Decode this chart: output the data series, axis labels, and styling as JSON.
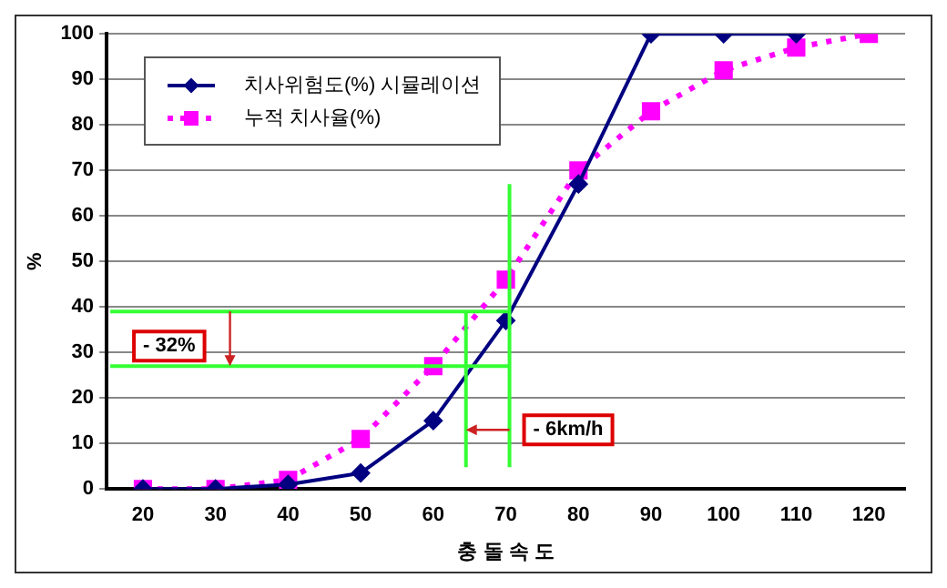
{
  "chart_data": {
    "type": "line",
    "xlabel": "충 돌 속 도",
    "ylabel": "%",
    "x": [
      20,
      30,
      40,
      50,
      60,
      70,
      80,
      90,
      100,
      110,
      120
    ],
    "xlim": [
      15,
      125
    ],
    "xticks": [
      20,
      30,
      40,
      50,
      60,
      70,
      80,
      90,
      100,
      110,
      120
    ],
    "ylim": [
      0,
      100
    ],
    "yticks": [
      0,
      10,
      20,
      30,
      40,
      50,
      60,
      70,
      80,
      90,
      100
    ],
    "grid": "y",
    "legend": "top left",
    "series": [
      {
        "name": "치사위험도(%) 시뮬레이션",
        "color": "#000080",
        "marker": "diamond",
        "line_style": "solid",
        "values": [
          0,
          0,
          1,
          3.5,
          15,
          37,
          67,
          100,
          100,
          100,
          null
        ]
      },
      {
        "name": "누적 치사율(%)",
        "color": "#ff00ff",
        "marker": "square",
        "line_style": "dotted",
        "values": [
          0,
          0,
          2,
          11,
          27,
          46,
          70,
          83,
          92,
          97,
          100
        ]
      }
    ],
    "ref_lines": [
      {
        "axis": "y",
        "value": 39,
        "color": "#33ff33"
      },
      {
        "axis": "y",
        "value": 27,
        "color": "#33ff33"
      },
      {
        "axis": "x",
        "value": 64.5,
        "color": "#33ff33"
      },
      {
        "axis": "x",
        "value": 70.5,
        "color": "#33ff33"
      }
    ],
    "annotations": [
      "- 32%",
      {
        "text": "- 6km/h",
        "x": 64.5,
        "y": 13
      }
    ]
  }
}
